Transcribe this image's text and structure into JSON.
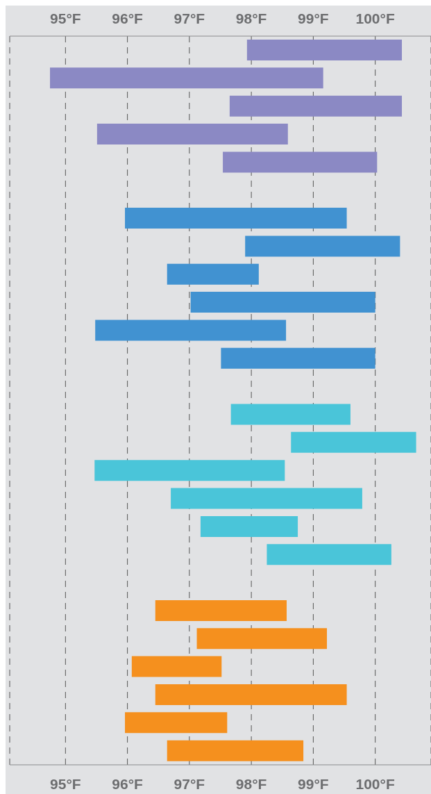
{
  "chart_data": {
    "type": "bar",
    "orientation": "horizontal",
    "categories": [
      null,
      null,
      null,
      null,
      null,
      null,
      null,
      null,
      null,
      null,
      null,
      null,
      null,
      null,
      null,
      null,
      null,
      null,
      null,
      null,
      null,
      null,
      null,
      null,
      null,
      null
    ],
    "base": [
      97.93,
      94.75,
      97.65,
      95.51,
      97.54,
      null,
      95.96,
      97.9,
      96.64,
      97.02,
      95.48,
      97.51,
      null,
      97.67,
      98.64,
      95.47,
      96.7,
      97.18,
      98.25,
      null,
      96.45,
      97.12,
      96.07,
      96.45,
      95.96,
      96.64
    ],
    "values": [
      2.5,
      4.41,
      2.78,
      3.08,
      2.49,
      null,
      3.58,
      2.5,
      1.48,
      2.98,
      3.08,
      2.49,
      null,
      1.93,
      2.02,
      3.07,
      3.09,
      1.57,
      2.01,
      null,
      2.12,
      2.1,
      1.45,
      3.09,
      1.65,
      2.2
    ],
    "colors": [
      "#8b89c4",
      "#8b89c4",
      "#8b89c4",
      "#8b89c4",
      "#8b89c4",
      null,
      "#4192d1",
      "#4192d1",
      "#4192d1",
      "#4192d1",
      "#4192d1",
      "#4192d1",
      null,
      "#4ac5d9",
      "#4ac5d9",
      "#4ac5d9",
      "#4ac5d9",
      "#4ac5d9",
      "#4ac5d9",
      null,
      "#f5901e",
      "#f5901e",
      "#f5901e",
      "#f5901e",
      "#f5901e",
      "#f5901e"
    ],
    "xlim": [
      94.1,
      100.9
    ],
    "xticks": [
      {
        "value": 95,
        "label": "95°F"
      },
      {
        "value": 96,
        "label": "96°F"
      },
      {
        "value": 97,
        "label": "97°F"
      },
      {
        "value": 98,
        "label": "98°F"
      },
      {
        "value": 99,
        "label": "99°F"
      },
      {
        "value": 100,
        "label": "100°F"
      }
    ],
    "x2lim": [
      94.1,
      100.9
    ],
    "x2ticks": [
      {
        "value": 95,
        "label": "95°F"
      },
      {
        "value": 96,
        "label": "96°F"
      },
      {
        "value": 97,
        "label": "97°F"
      },
      {
        "value": 98,
        "label": "98°F"
      },
      {
        "value": 99,
        "label": "99°F"
      },
      {
        "value": 100,
        "label": "100°F"
      }
    ],
    "grid": "x"
  }
}
